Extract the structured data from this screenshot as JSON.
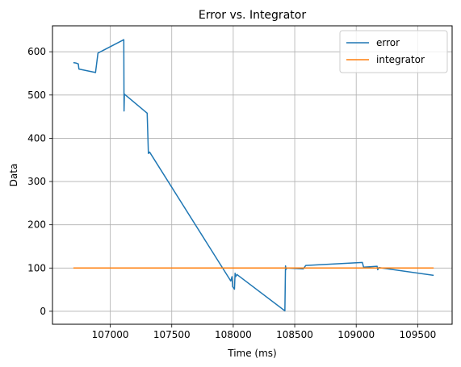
{
  "chart_data": {
    "type": "line",
    "title": "Error vs. Integrator",
    "xlabel": "Time (ms)",
    "ylabel": "Data",
    "xlim": [
      106530,
      109780
    ],
    "ylim": [
      -30,
      660
    ],
    "xticks": [
      107000,
      107500,
      108000,
      108500,
      109000,
      109500
    ],
    "yticks": [
      0,
      100,
      200,
      300,
      400,
      500,
      600
    ],
    "grid": true,
    "legend_position": "top-right",
    "series": [
      {
        "name": "error",
        "color": "#1f77b4",
        "points": [
          [
            106700,
            575
          ],
          [
            106720,
            574
          ],
          [
            106740,
            572
          ],
          [
            106745,
            560
          ],
          [
            106880,
            552
          ],
          [
            106900,
            597
          ],
          [
            107110,
            628
          ],
          [
            107112,
            463
          ],
          [
            107115,
            502
          ],
          [
            107300,
            458
          ],
          [
            107310,
            365
          ],
          [
            107320,
            368
          ],
          [
            107980,
            70
          ],
          [
            107990,
            80
          ],
          [
            107995,
            57
          ],
          [
            108010,
            51
          ],
          [
            108015,
            88
          ],
          [
            108020,
            80
          ],
          [
            108030,
            85
          ],
          [
            108420,
            1
          ],
          [
            108425,
            105
          ],
          [
            108430,
            97
          ],
          [
            108435,
            100
          ],
          [
            108570,
            98
          ],
          [
            108590,
            106
          ],
          [
            109050,
            113
          ],
          [
            109060,
            102
          ],
          [
            109170,
            104
          ],
          [
            109175,
            96
          ],
          [
            109185,
            101
          ],
          [
            109630,
            83
          ]
        ]
      },
      {
        "name": "integrator",
        "color": "#ff7f0e",
        "points": [
          [
            106700,
            100
          ],
          [
            109630,
            100
          ]
        ]
      }
    ]
  }
}
